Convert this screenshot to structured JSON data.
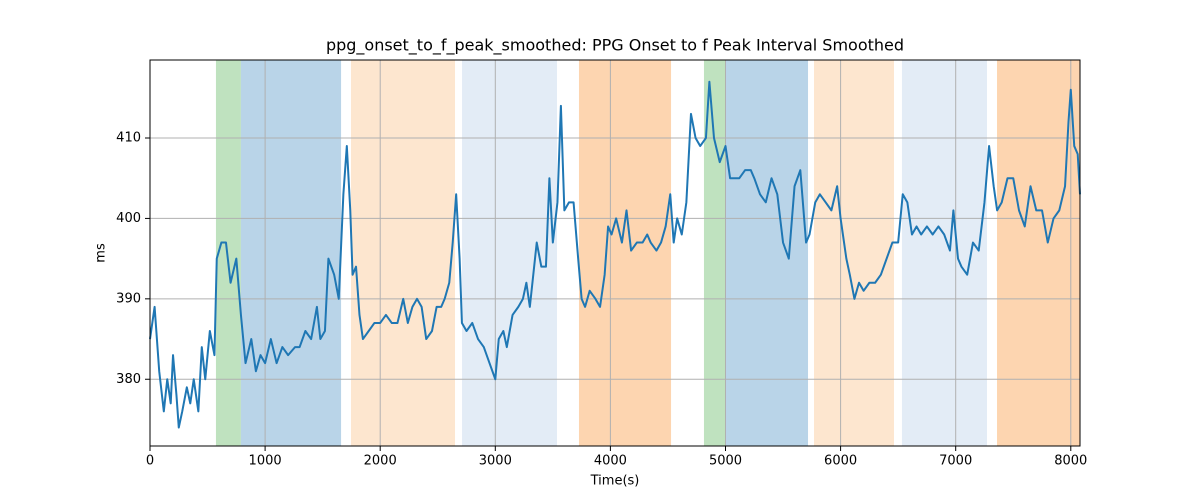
{
  "chart_data": {
    "type": "line",
    "title": "ppg_onset_to_f_peak_smoothed: PPG Onset to f Peak Interval Smoothed",
    "x_label": "Time(s)",
    "y_label": "ms",
    "color": "#1f77b4",
    "grid": true,
    "xlim": [
      0,
      8080
    ],
    "ylim": [
      371.7,
      419.7
    ],
    "xticks": [
      0,
      1000,
      2000,
      3000,
      4000,
      5000,
      6000,
      7000,
      8000
    ],
    "yticks": [
      380,
      390,
      400,
      410
    ],
    "regions": [
      {
        "start": 573,
        "end": 790,
        "color": "#bfe2bf"
      },
      {
        "start": 790,
        "end": 1660,
        "color": "#b9d4e8"
      },
      {
        "start": 1746,
        "end": 2650,
        "color": "#fde6cf"
      },
      {
        "start": 2711,
        "end": 3536,
        "color": "#e3ecf6"
      },
      {
        "start": 3727,
        "end": 4527,
        "color": "#fdd5b0"
      },
      {
        "start": 4813,
        "end": 5004,
        "color": "#bfe2bf"
      },
      {
        "start": 5004,
        "end": 5717,
        "color": "#b9d4e8"
      },
      {
        "start": 5769,
        "end": 6464,
        "color": "#fde6cf"
      },
      {
        "start": 6533,
        "end": 7272,
        "color": "#e3ecf6"
      },
      {
        "start": 7359,
        "end": 8080,
        "color": "#fdd5b0"
      }
    ],
    "x": [
      0,
      40,
      80,
      120,
      150,
      180,
      200,
      230,
      250,
      280,
      320,
      350,
      380,
      420,
      450,
      480,
      520,
      560,
      580,
      620,
      660,
      700,
      750,
      790,
      830,
      880,
      920,
      960,
      1000,
      1050,
      1100,
      1150,
      1200,
      1260,
      1300,
      1350,
      1400,
      1450,
      1480,
      1520,
      1550,
      1600,
      1640,
      1680,
      1710,
      1740,
      1760,
      1790,
      1820,
      1850,
      1900,
      1950,
      2000,
      2050,
      2100,
      2150,
      2200,
      2240,
      2280,
      2320,
      2360,
      2400,
      2450,
      2490,
      2530,
      2560,
      2600,
      2630,
      2660,
      2690,
      2710,
      2750,
      2800,
      2850,
      2900,
      2950,
      3000,
      3030,
      3070,
      3100,
      3150,
      3200,
      3240,
      3270,
      3300,
      3330,
      3360,
      3400,
      3440,
      3470,
      3500,
      3540,
      3570,
      3600,
      3640,
      3680,
      3720,
      3750,
      3780,
      3820,
      3870,
      3910,
      3950,
      3980,
      4010,
      4050,
      4100,
      4140,
      4180,
      4230,
      4280,
      4320,
      4350,
      4400,
      4440,
      4480,
      4520,
      4550,
      4580,
      4620,
      4660,
      4700,
      4740,
      4780,
      4830,
      4860,
      4900,
      4950,
      5000,
      5040,
      5080,
      5120,
      5170,
      5220,
      5250,
      5300,
      5350,
      5400,
      5450,
      5500,
      5550,
      5600,
      5650,
      5700,
      5730,
      5780,
      5820,
      5870,
      5920,
      5970,
      6000,
      6050,
      6080,
      6120,
      6160,
      6200,
      6250,
      6300,
      6350,
      6400,
      6450,
      6500,
      6540,
      6580,
      6620,
      6660,
      6700,
      6750,
      6800,
      6850,
      6900,
      6950,
      6980,
      7020,
      7050,
      7100,
      7150,
      7200,
      7250,
      7290,
      7330,
      7360,
      7400,
      7450,
      7500,
      7550,
      7600,
      7650,
      7700,
      7750,
      7800,
      7850,
      7900,
      7950,
      7980,
      8000,
      8030,
      8060,
      8080
    ],
    "values": [
      385,
      389,
      381,
      376,
      380,
      377,
      383,
      378,
      374,
      376,
      379,
      377,
      380,
      376,
      384,
      380,
      386,
      383,
      395,
      397,
      397,
      392,
      395,
      388,
      382,
      385,
      381,
      383,
      382,
      385,
      382,
      384,
      383,
      384,
      384,
      386,
      385,
      389,
      385,
      386,
      395,
      393,
      390,
      403,
      409,
      401,
      393,
      394,
      388,
      385,
      386,
      387,
      387,
      388,
      387,
      387,
      390,
      387,
      389,
      390,
      389,
      385,
      386,
      389,
      389,
      390,
      392,
      397,
      403,
      395,
      387,
      386,
      387,
      385,
      384,
      382,
      380,
      385,
      386,
      384,
      388,
      389,
      390,
      392,
      389,
      393,
      397,
      394,
      394,
      405,
      397,
      402,
      414,
      401,
      402,
      402,
      395,
      390,
      389,
      391,
      390,
      389,
      393,
      399,
      398,
      400,
      397,
      401,
      396,
      397,
      397,
      398,
      397,
      396,
      397,
      399,
      403,
      397,
      400,
      398,
      402,
      413,
      410,
      409,
      410,
      417,
      410,
      407,
      409,
      405,
      405,
      405,
      406,
      406,
      405,
      403,
      402,
      405,
      403,
      397,
      395,
      404,
      406,
      397,
      398,
      402,
      403,
      402,
      401,
      404,
      400,
      395,
      393,
      390,
      392,
      391,
      392,
      392,
      393,
      395,
      397,
      397,
      403,
      402,
      398,
      399,
      398,
      399,
      398,
      399,
      398,
      396,
      401,
      395,
      394,
      393,
      397,
      396,
      402,
      409,
      404,
      401,
      402,
      405,
      405,
      401,
      399,
      404,
      401,
      401,
      397,
      400,
      401,
      404,
      412,
      416,
      409,
      408,
      403
    ]
  }
}
